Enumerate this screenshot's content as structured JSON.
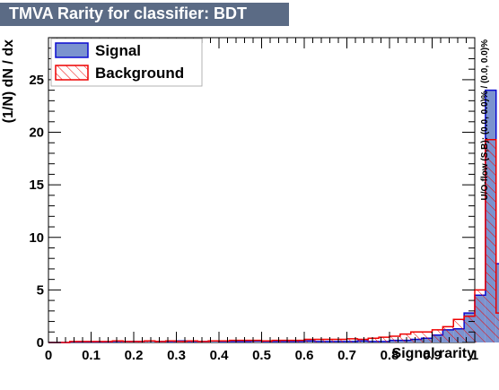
{
  "chart_data": {
    "type": "bar",
    "title": "TMVA Rarity for classifier: BDT",
    "xlabel": "Signal rarity",
    "ylabel": "(1/N) dN / dx",
    "side_text": "U/O-flow (S,B): (0.0, 0.0)% / (0.0, 0.0)%",
    "xlim": [
      0,
      1
    ],
    "ylim": [
      0,
      29
    ],
    "xticks": [
      "0",
      "0.1",
      "0.2",
      "0.3",
      "0.4",
      "0.5",
      "0.6",
      "0.7",
      "0.8",
      "0.9",
      "1"
    ],
    "yticks": [
      "0",
      "5",
      "10",
      "15",
      "20",
      "25"
    ],
    "bin_width": 0.025,
    "legend": {
      "position": "top-left"
    },
    "series": [
      {
        "name": "Signal",
        "fill": "#7b93cf",
        "line": "#0b0bd0",
        "values": [
          0,
          0,
          0.05,
          0.05,
          0.05,
          0.05,
          0.1,
          0.1,
          0.1,
          0.15,
          0.1,
          0.1,
          0.15,
          0.1,
          0.1,
          0.15,
          0.1,
          0.1,
          0.1,
          0.15,
          0.1,
          0.1,
          0.1,
          0.1,
          0.15,
          0.1,
          0.1,
          0.1,
          0.1,
          0.15,
          0.1,
          0.1,
          0.2,
          0.2,
          0.3,
          0.4,
          0.7,
          1.2,
          1.3,
          2.8,
          4.5,
          24.0,
          7.5,
          3.2,
          1.5,
          0.8
        ]
      },
      {
        "name": "Background",
        "fill": "#ffffff",
        "line": "#ee0000",
        "values": [
          0,
          0,
          0.1,
          0.1,
          0.1,
          0.1,
          0.15,
          0.1,
          0.1,
          0.15,
          0.1,
          0.15,
          0.1,
          0.15,
          0.1,
          0.15,
          0.15,
          0.2,
          0.2,
          0.2,
          0.15,
          0.2,
          0.2,
          0.2,
          0.3,
          0.3,
          0.3,
          0.3,
          0.35,
          0.3,
          0.4,
          0.5,
          0.6,
          0.8,
          1.0,
          1.0,
          1.2,
          1.5,
          2.2,
          2.5,
          5.0,
          19.3,
          2.8,
          1.0,
          0.4,
          0.2
        ]
      }
    ]
  }
}
